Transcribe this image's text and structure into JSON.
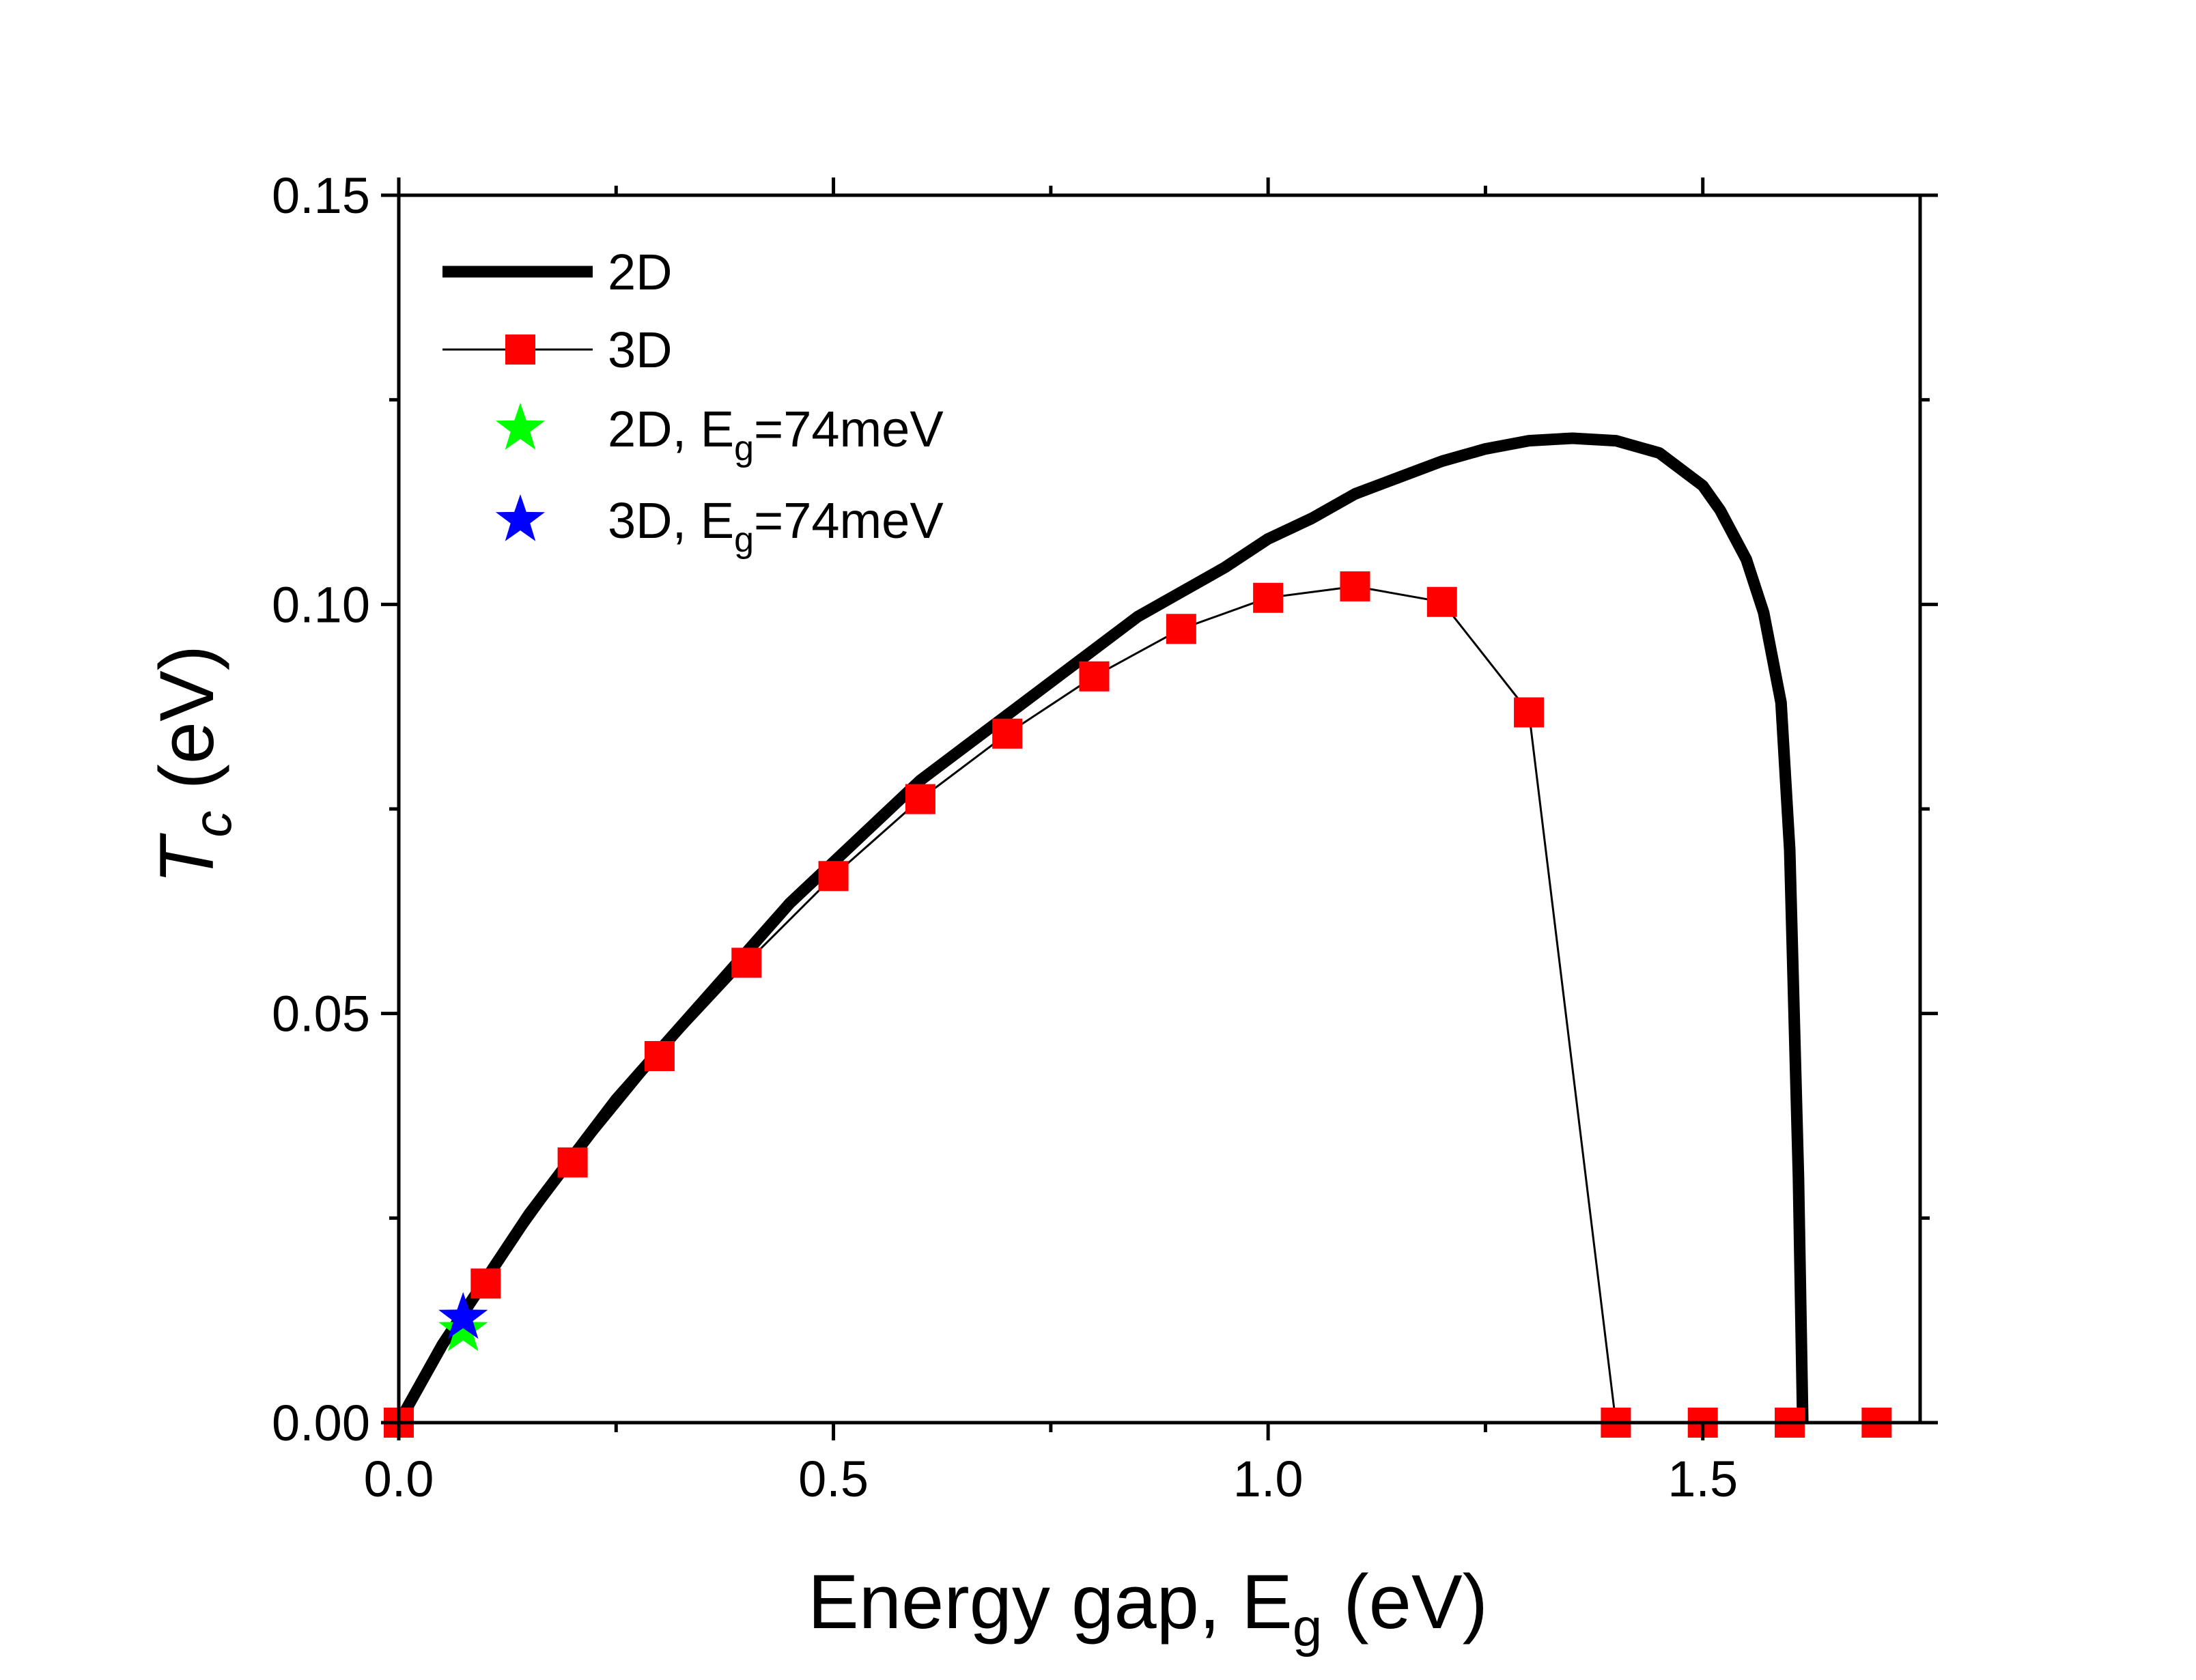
{
  "chart_data": {
    "type": "line",
    "xlabel": {
      "main": "Energy gap, E",
      "sub": "g",
      "tail": " (eV)"
    },
    "ylabel": {
      "main": "T",
      "sub": "c",
      "tail": " (eV)"
    },
    "xlim": [
      0.0,
      1.75
    ],
    "ylim": [
      0.0,
      0.15
    ],
    "x_ticks": [
      0.0,
      0.5,
      1.0,
      1.5
    ],
    "x_tick_labels": [
      "0.0",
      "0.5",
      "1.0",
      "1.5"
    ],
    "x_minor_ticks": [
      0.25,
      0.75,
      1.25
    ],
    "y_ticks": [
      0.0,
      0.05,
      0.1,
      0.15
    ],
    "y_tick_labels": [
      "0.00",
      "0.05",
      "0.10",
      "0.15"
    ],
    "y_minor_ticks": [
      0.025,
      0.075,
      0.125
    ],
    "grid": false,
    "legend_position": "top-left",
    "series": [
      {
        "name": "2D",
        "style": "line",
        "color": "#000000",
        "x": [
          0.0,
          0.05,
          0.1,
          0.15,
          0.2,
          0.25,
          0.3,
          0.35,
          0.4,
          0.45,
          0.5,
          0.55,
          0.6,
          0.65,
          0.7,
          0.75,
          0.8,
          0.85,
          0.9,
          0.95,
          1.0,
          1.05,
          1.1,
          1.15,
          1.2,
          1.25,
          1.3,
          1.35,
          1.4,
          1.45,
          1.5,
          1.52,
          1.55,
          1.57,
          1.59,
          1.6,
          1.61,
          1.615
        ],
        "y": [
          0.0,
          0.0095,
          0.0175,
          0.0255,
          0.0325,
          0.0395,
          0.0455,
          0.0515,
          0.0575,
          0.0635,
          0.0685,
          0.0735,
          0.0785,
          0.0825,
          0.0865,
          0.0905,
          0.0945,
          0.0985,
          0.1015,
          0.1045,
          0.108,
          0.1105,
          0.1135,
          0.1155,
          0.1175,
          0.119,
          0.12,
          0.1203,
          0.12,
          0.1185,
          0.1145,
          0.1115,
          0.1055,
          0.099,
          0.088,
          0.07,
          0.03,
          0.0
        ]
      },
      {
        "name": "3D",
        "style": "line-square",
        "color": "#ff0000",
        "line_color": "#000000",
        "x": [
          0.0,
          0.1,
          0.2,
          0.3,
          0.4,
          0.5,
          0.6,
          0.7,
          0.8,
          0.9,
          1.0,
          1.1,
          1.2,
          1.3,
          1.4,
          1.5,
          1.6,
          1.7
        ],
        "y": [
          0.0,
          0.017,
          0.0318,
          0.0448,
          0.0562,
          0.0668,
          0.0762,
          0.0842,
          0.0912,
          0.097,
          0.1008,
          0.1022,
          0.1003,
          0.0868,
          0.0,
          0.0,
          0.0,
          0.0
        ]
      },
      {
        "name": "2D, E",
        "name_sub": "g",
        "name_tail": "=74meV",
        "style": "star",
        "color": "#00ff00",
        "x": [
          0.074
        ],
        "y": [
          0.0113
        ]
      },
      {
        "name": "3D, E",
        "name_sub": "g",
        "name_tail": "=74meV",
        "style": "star",
        "color": "#0000ff",
        "x": [
          0.074
        ],
        "y": [
          0.0128
        ]
      }
    ]
  }
}
